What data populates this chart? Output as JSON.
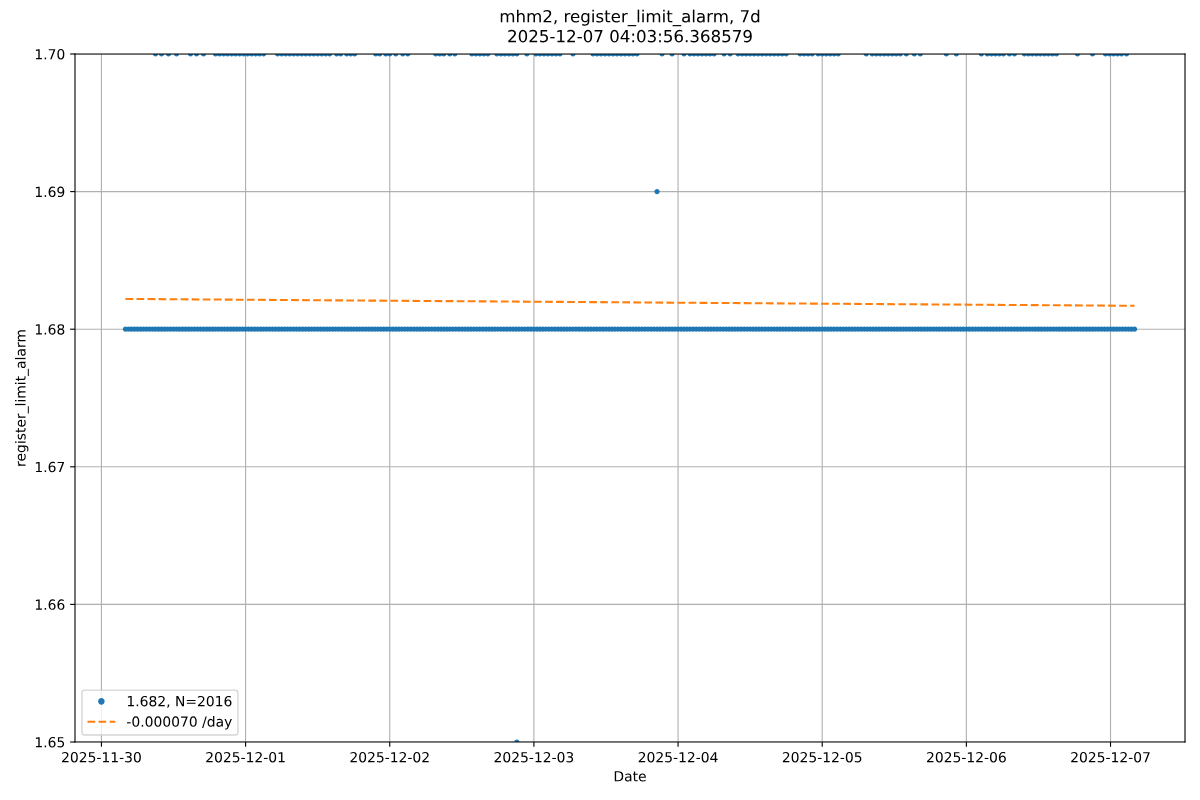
{
  "chart_data": {
    "type": "scatter",
    "title": "mhm2, register_limit_alarm, 7d",
    "subtitle": "2025-12-07 04:03:56.368579",
    "xlabel": "Date",
    "ylabel": "register_limit_alarm",
    "xlim": [
      "2025-11-29T19:36",
      "2025-12-07T12:24"
    ],
    "ylim": [
      1.65,
      1.7
    ],
    "xticks": [
      {
        "value": "2025-11-30",
        "label": "2025-11-30"
      },
      {
        "value": "2025-12-01",
        "label": "2025-12-01"
      },
      {
        "value": "2025-12-02",
        "label": "2025-12-02"
      },
      {
        "value": "2025-12-03",
        "label": "2025-12-03"
      },
      {
        "value": "2025-12-04",
        "label": "2025-12-04"
      },
      {
        "value": "2025-12-05",
        "label": "2025-12-05"
      },
      {
        "value": "2025-12-06",
        "label": "2025-12-06"
      },
      {
        "value": "2025-12-07",
        "label": "2025-12-07"
      }
    ],
    "yticks": [
      1.65,
      1.66,
      1.67,
      1.68,
      1.69,
      {
        "value": 1.7,
        "label": "1.70"
      }
    ],
    "grid": true,
    "legend": "bottom left",
    "series": [
      {
        "name": "1.682, N=2016",
        "color": "#1f77b4",
        "marker": "circle",
        "x": [
          "2025-11-30T04:00",
          "2025-11-30T04:30",
          "2025-11-30T05:00",
          "2025-11-30T05:30",
          "2025-11-30T06:00",
          "2025-11-30T06:30",
          "2025-11-30T07:00",
          "2025-11-30T07:30",
          "2025-11-30T08:00",
          "2025-11-30T08:30",
          "2025-11-30T09:00",
          "2025-11-30T09:30",
          "2025-11-30T10:00",
          "2025-11-30T10:30",
          "2025-11-30T11:00",
          "2025-11-30T11:30",
          "2025-11-30T12:00",
          "2025-11-30T12:30",
          "2025-11-30T13:00",
          "2025-11-30T13:30",
          "2025-11-30T14:00",
          "2025-11-30T14:30",
          "2025-11-30T15:00",
          "2025-11-30T15:30",
          "2025-11-30T16:00",
          "2025-11-30T16:30",
          "2025-11-30T17:00",
          "2025-11-30T17:30",
          "2025-11-30T18:00",
          "2025-11-30T18:30",
          "2025-11-30T19:00",
          "2025-11-30T19:30",
          "2025-11-30T20:00",
          "2025-11-30T20:30",
          "2025-11-30T21:00",
          "2025-11-30T21:30",
          "2025-11-30T22:00",
          "2025-11-30T22:30",
          "2025-11-30T23:00",
          "2025-11-30T23:30",
          "2025-12-01T00:00",
          "2025-12-01T00:30",
          "2025-12-01T01:00",
          "2025-12-01T01:30",
          "2025-12-01T02:00",
          "2025-12-01T02:30",
          "2025-12-01T03:00",
          "2025-12-01T03:30",
          "2025-12-01T04:00",
          "2025-12-01T04:30",
          "2025-12-01T05:00",
          "2025-12-01T05:30",
          "2025-12-01T06:00",
          "2025-12-01T06:30",
          "2025-12-01T07:00",
          "2025-12-01T07:30",
          "2025-12-01T08:00",
          "2025-12-01T08:30",
          "2025-12-01T09:00",
          "2025-12-01T09:30",
          "2025-12-01T10:00",
          "2025-12-01T10:30",
          "2025-12-01T11:00",
          "2025-12-01T11:30",
          "2025-12-01T12:00",
          "2025-12-01T12:30",
          "2025-12-01T13:00",
          "2025-12-01T13:30",
          "2025-12-01T14:00",
          "2025-12-01T14:30",
          "2025-12-01T15:00",
          "2025-12-01T15:30",
          "2025-12-01T16:00",
          "2025-12-01T16:30",
          "2025-12-01T17:00",
          "2025-12-01T17:30",
          "2025-12-01T18:00",
          "2025-12-01T18:30",
          "2025-12-01T19:00",
          "2025-12-01T19:30",
          "2025-12-01T20:00",
          "2025-12-01T20:30",
          "2025-12-01T21:00",
          "2025-12-01T21:30",
          "2025-12-01T22:00",
          "2025-12-01T22:30",
          "2025-12-01T23:00",
          "2025-12-01T23:30",
          "2025-12-02T00:00",
          "2025-12-02T00:30",
          "2025-12-02T01:00",
          "2025-12-02T01:30",
          "2025-12-02T02:00",
          "2025-12-02T02:30",
          "2025-12-02T03:00",
          "2025-12-02T03:30",
          "2025-12-02T04:00",
          "2025-12-02T04:30",
          "2025-12-02T05:00",
          "2025-12-02T05:30",
          "2025-12-02T06:00",
          "2025-12-02T06:30",
          "2025-12-02T07:00",
          "2025-12-02T07:30",
          "2025-12-02T08:00",
          "2025-12-02T08:30",
          "2025-12-02T09:00",
          "2025-12-02T09:30",
          "2025-12-02T10:00",
          "2025-12-02T10:30",
          "2025-12-02T11:00",
          "2025-12-02T11:30",
          "2025-12-02T12:00",
          "2025-12-02T12:30",
          "2025-12-02T13:00",
          "2025-12-02T13:30",
          "2025-12-02T14:00",
          "2025-12-02T14:30",
          "2025-12-02T15:00",
          "2025-12-02T15:30",
          "2025-12-02T16:00",
          "2025-12-02T16:30",
          "2025-12-02T17:00",
          "2025-12-02T17:30",
          "2025-12-02T18:00",
          "2025-12-02T18:30",
          "2025-12-02T19:00",
          "2025-12-02T19:30",
          "2025-12-02T20:00",
          "2025-12-02T20:30",
          "2025-12-02T21:00",
          "2025-12-02T21:30",
          "2025-12-02T22:00",
          "2025-12-02T22:30",
          "2025-12-02T23:00",
          "2025-12-02T23:30",
          "2025-12-03T00:00",
          "2025-12-03T00:30",
          "2025-12-03T01:00",
          "2025-12-03T01:30",
          "2025-12-03T02:00",
          "2025-12-03T02:30",
          "2025-12-03T03:00",
          "2025-12-03T03:30",
          "2025-12-03T04:00",
          "2025-12-03T04:30",
          "2025-12-03T05:00",
          "2025-12-03T05:30",
          "2025-12-03T06:00",
          "2025-12-03T06:30",
          "2025-12-03T07:00",
          "2025-12-03T07:30",
          "2025-12-03T08:00",
          "2025-12-03T08:30",
          "2025-12-03T09:00",
          "2025-12-03T09:30",
          "2025-12-03T10:00",
          "2025-12-03T10:30",
          "2025-12-03T11:00",
          "2025-12-03T11:30",
          "2025-12-03T12:00",
          "2025-12-03T12:30",
          "2025-12-03T13:00",
          "2025-12-03T13:30",
          "2025-12-03T14:00",
          "2025-12-03T14:30",
          "2025-12-03T15:00",
          "2025-12-03T15:30",
          "2025-12-03T16:00",
          "2025-12-03T16:30",
          "2025-12-03T17:00",
          "2025-12-03T17:30",
          "2025-12-03T18:00",
          "2025-12-03T18:30",
          "2025-12-03T19:00",
          "2025-12-03T19:30",
          "2025-12-03T20:00",
          "2025-12-03T20:30",
          "2025-12-03T21:00",
          "2025-12-03T21:30",
          "2025-12-03T22:00",
          "2025-12-03T22:30",
          "2025-12-03T23:00",
          "2025-12-03T23:30",
          "2025-12-04T00:00",
          "2025-12-04T00:30",
          "2025-12-04T01:00",
          "2025-12-04T01:30",
          "2025-12-04T02:00",
          "2025-12-04T02:30",
          "2025-12-04T03:00",
          "2025-12-04T03:30",
          "2025-12-04T04:00",
          "2025-12-04T04:30",
          "2025-12-04T05:00",
          "2025-12-04T05:30",
          "2025-12-04T06:00",
          "2025-12-04T06:30",
          "2025-12-04T07:00",
          "2025-12-04T07:30",
          "2025-12-04T08:00",
          "2025-12-04T08:30",
          "2025-12-04T09:00",
          "2025-12-04T09:30",
          "2025-12-04T10:00",
          "2025-12-04T10:30",
          "2025-12-04T11:00",
          "2025-12-04T11:30",
          "2025-12-04T12:00",
          "2025-12-04T12:30",
          "2025-12-04T13:00",
          "2025-12-04T13:30",
          "2025-12-04T14:00",
          "2025-12-04T14:30",
          "2025-12-04T15:00",
          "2025-12-04T15:30",
          "2025-12-04T16:00",
          "2025-12-04T16:30",
          "2025-12-04T17:00",
          "2025-12-04T17:30",
          "2025-12-04T18:00",
          "2025-12-04T18:30",
          "2025-12-04T19:00",
          "2025-12-04T19:30",
          "2025-12-04T20:00",
          "2025-12-04T20:30",
          "2025-12-04T21:00",
          "2025-12-04T21:30",
          "2025-12-04T22:00",
          "2025-12-04T22:30",
          "2025-12-04T23:00",
          "2025-12-04T23:30",
          "2025-12-05T00:00",
          "2025-12-05T00:30",
          "2025-12-05T01:00",
          "2025-12-05T01:30",
          "2025-12-05T02:00",
          "2025-12-05T02:30",
          "2025-12-05T03:00",
          "2025-12-05T03:30",
          "2025-12-05T04:00",
          "2025-12-05T04:30",
          "2025-12-05T05:00",
          "2025-12-05T05:30",
          "2025-12-05T06:00",
          "2025-12-05T06:30",
          "2025-12-05T07:00",
          "2025-12-05T07:30",
          "2025-12-05T08:00",
          "2025-12-05T08:30",
          "2025-12-05T09:00",
          "2025-12-05T09:30",
          "2025-12-05T10:00",
          "2025-12-05T10:30",
          "2025-12-05T11:00",
          "2025-12-05T11:30",
          "2025-12-05T12:00",
          "2025-12-05T12:30",
          "2025-12-05T13:00",
          "2025-12-05T13:30",
          "2025-12-05T14:00",
          "2025-12-05T14:30",
          "2025-12-05T15:00",
          "2025-12-05T15:30",
          "2025-12-05T16:00",
          "2025-12-05T16:30",
          "2025-12-05T17:00",
          "2025-12-05T17:30",
          "2025-12-05T18:00",
          "2025-12-05T18:30",
          "2025-12-05T19:00",
          "2025-12-05T19:30",
          "2025-12-05T20:00",
          "2025-12-05T20:30",
          "2025-12-05T21:00",
          "2025-12-05T21:30",
          "2025-12-05T22:00",
          "2025-12-05T22:30",
          "2025-12-05T23:00",
          "2025-12-05T23:30",
          "2025-12-06T00:00",
          "2025-12-06T00:30",
          "2025-12-06T01:00",
          "2025-12-06T01:30",
          "2025-12-06T02:00",
          "2025-12-06T02:30",
          "2025-12-06T03:00",
          "2025-12-06T03:30",
          "2025-12-06T04:00",
          "2025-12-06T04:30",
          "2025-12-06T05:00",
          "2025-12-06T05:30",
          "2025-12-06T06:00",
          "2025-12-06T06:30",
          "2025-12-06T07:00",
          "2025-12-06T07:30",
          "2025-12-06T08:00",
          "2025-12-06T08:30",
          "2025-12-06T09:00",
          "2025-12-06T09:30",
          "2025-12-06T10:00",
          "2025-12-06T10:30",
          "2025-12-06T11:00",
          "2025-12-06T11:30",
          "2025-12-06T12:00",
          "2025-12-06T12:30",
          "2025-12-06T13:00",
          "2025-12-06T13:30",
          "2025-12-06T14:00",
          "2025-12-06T14:30",
          "2025-12-06T15:00",
          "2025-12-06T15:30",
          "2025-12-06T16:00",
          "2025-12-06T16:30",
          "2025-12-06T17:00",
          "2025-12-06T17:30",
          "2025-12-06T18:00",
          "2025-12-06T18:30",
          "2025-12-06T19:00",
          "2025-12-06T19:30",
          "2025-12-06T20:00",
          "2025-12-06T20:30",
          "2025-12-06T21:00",
          "2025-12-06T21:30",
          "2025-12-06T22:00",
          "2025-12-06T22:30",
          "2025-12-06T23:00",
          "2025-12-06T23:30",
          "2025-12-07T00:00",
          "2025-12-07T00:30",
          "2025-12-07T01:00",
          "2025-12-07T01:30",
          "2025-12-07T02:00",
          "2025-12-07T02:30",
          "2025-12-07T03:00",
          "2025-12-07T03:30",
          "2025-12-07T04:00",
          "2025-11-30T09:00",
          "2025-11-30T10:00",
          "2025-11-30T11:10",
          "2025-11-30T12:30",
          "2025-11-30T14:50",
          "2025-11-30T15:50",
          "2025-11-30T17:00",
          "2025-11-30T19:00",
          "2025-11-30T19:40",
          "2025-11-30T20:20",
          "2025-11-30T21:00",
          "2025-11-30T21:40",
          "2025-11-30T22:20",
          "2025-11-30T23:00",
          "2025-11-30T23:40",
          "2025-12-01T00:20",
          "2025-12-01T01:00",
          "2025-12-01T01:40",
          "2025-12-01T02:20",
          "2025-12-01T03:00",
          "2025-12-01T05:20",
          "2025-12-01T06:00",
          "2025-12-01T06:40",
          "2025-12-01T07:20",
          "2025-12-01T08:00",
          "2025-12-01T08:40",
          "2025-12-01T09:20",
          "2025-12-01T10:00",
          "2025-12-01T10:40",
          "2025-12-01T11:20",
          "2025-12-01T12:00",
          "2025-12-01T12:40",
          "2025-12-01T13:20",
          "2025-12-01T14:00",
          "2025-12-01T15:10",
          "2025-12-01T15:50",
          "2025-12-01T16:50",
          "2025-12-01T17:30",
          "2025-12-01T18:10",
          "2025-12-01T21:40",
          "2025-12-01T22:20",
          "2025-12-01T23:20",
          "2025-12-02T00:00",
          "2025-12-02T01:00",
          "2025-12-02T02:10",
          "2025-12-02T03:00",
          "2025-12-02T07:40",
          "2025-12-02T08:20",
          "2025-12-02T09:00",
          "2025-12-02T10:00",
          "2025-12-02T10:50",
          "2025-12-02T13:40",
          "2025-12-02T14:20",
          "2025-12-02T15:00",
          "2025-12-02T15:40",
          "2025-12-02T16:20",
          "2025-12-02T17:50",
          "2025-12-02T18:30",
          "2025-12-02T19:10",
          "2025-12-02T19:50",
          "2025-12-02T20:30",
          "2025-12-02T21:10",
          "2025-12-02T22:50",
          "2025-12-03T00:20",
          "2025-12-03T01:00",
          "2025-12-03T01:40",
          "2025-12-03T02:20",
          "2025-12-03T03:00",
          "2025-12-03T03:40",
          "2025-12-03T04:20",
          "2025-12-03T06:30",
          "2025-12-03T09:50",
          "2025-12-03T10:30",
          "2025-12-03T11:10",
          "2025-12-03T11:50",
          "2025-12-03T12:30",
          "2025-12-03T13:10",
          "2025-12-03T13:50",
          "2025-12-03T14:30",
          "2025-12-03T15:10",
          "2025-12-03T15:50",
          "2025-12-03T16:30",
          "2025-12-03T17:10",
          "2025-12-03T21:20",
          "2025-12-03T23:00",
          "2025-12-04T01:00",
          "2025-12-04T02:00",
          "2025-12-04T02:40",
          "2025-12-04T03:20",
          "2025-12-04T04:00",
          "2025-12-04T04:40",
          "2025-12-04T05:20",
          "2025-12-04T06:00",
          "2025-12-04T07:40",
          "2025-12-04T08:40",
          "2025-12-04T10:00",
          "2025-12-04T10:40",
          "2025-12-04T11:20",
          "2025-12-04T12:00",
          "2025-12-04T12:40",
          "2025-12-04T13:20",
          "2025-12-04T14:00",
          "2025-12-04T14:40",
          "2025-12-04T15:20",
          "2025-12-04T16:00",
          "2025-12-04T16:40",
          "2025-12-04T17:20",
          "2025-12-04T18:00",
          "2025-12-04T20:20",
          "2025-12-04T21:00",
          "2025-12-04T21:40",
          "2025-12-04T22:20",
          "2025-12-04T23:20",
          "2025-12-05T00:00",
          "2025-12-05T00:40",
          "2025-12-05T01:20",
          "2025-12-05T02:00",
          "2025-12-05T02:40",
          "2025-12-05T07:20",
          "2025-12-05T08:20",
          "2025-12-05T09:00",
          "2025-12-05T09:40",
          "2025-12-05T10:20",
          "2025-12-05T11:00",
          "2025-12-05T11:40",
          "2025-12-05T12:20",
          "2025-12-05T13:00",
          "2025-12-05T14:00",
          "2025-12-05T15:20",
          "2025-12-05T16:20",
          "2025-12-05T20:40",
          "2025-12-05T22:20",
          "2025-12-06T02:30",
          "2025-12-06T03:30",
          "2025-12-06T04:10",
          "2025-12-06T04:50",
          "2025-12-06T05:30",
          "2025-12-06T06:10",
          "2025-12-06T07:10",
          "2025-12-06T08:00",
          "2025-12-06T09:40",
          "2025-12-06T10:20",
          "2025-12-06T11:00",
          "2025-12-06T11:40",
          "2025-12-06T12:20",
          "2025-12-06T13:00",
          "2025-12-06T13:40",
          "2025-12-06T14:20",
          "2025-12-06T15:00",
          "2025-12-06T18:30",
          "2025-12-06T21:00",
          "2025-12-06T23:10",
          "2025-12-06T23:50",
          "2025-12-07T00:30",
          "2025-12-07T01:10",
          "2025-12-07T01:50",
          "2025-12-07T02:40",
          "2025-12-03T20:30",
          "2025-12-02T21:10"
        ],
        "values": [
          1.68,
          1.68,
          1.68,
          1.68,
          1.68,
          1.68,
          1.68,
          1.68,
          1.68,
          1.68,
          1.68,
          1.68,
          1.68,
          1.68,
          1.68,
          1.68,
          1.68,
          1.68,
          1.68,
          1.68,
          1.68,
          1.68,
          1.68,
          1.68,
          1.68,
          1.68,
          1.68,
          1.68,
          1.68,
          1.68,
          1.68,
          1.68,
          1.68,
          1.68,
          1.68,
          1.68,
          1.68,
          1.68,
          1.68,
          1.68,
          1.68,
          1.68,
          1.68,
          1.68,
          1.68,
          1.68,
          1.68,
          1.68,
          1.68,
          1.68,
          1.68,
          1.68,
          1.68,
          1.68,
          1.68,
          1.68,
          1.68,
          1.68,
          1.68,
          1.68,
          1.68,
          1.68,
          1.68,
          1.68,
          1.68,
          1.68,
          1.68,
          1.68,
          1.68,
          1.68,
          1.68,
          1.68,
          1.68,
          1.68,
          1.68,
          1.68,
          1.68,
          1.68,
          1.68,
          1.68,
          1.68,
          1.68,
          1.68,
          1.68,
          1.68,
          1.68,
          1.68,
          1.68,
          1.68,
          1.68,
          1.68,
          1.68,
          1.68,
          1.68,
          1.68,
          1.68,
          1.68,
          1.68,
          1.68,
          1.68,
          1.68,
          1.68,
          1.68,
          1.68,
          1.68,
          1.68,
          1.68,
          1.68,
          1.68,
          1.68,
          1.68,
          1.68,
          1.68,
          1.68,
          1.68,
          1.68,
          1.68,
          1.68,
          1.68,
          1.68,
          1.68,
          1.68,
          1.68,
          1.68,
          1.68,
          1.68,
          1.68,
          1.68,
          1.68,
          1.68,
          1.68,
          1.68,
          1.68,
          1.68,
          1.68,
          1.68,
          1.68,
          1.68,
          1.68,
          1.68,
          1.68,
          1.68,
          1.68,
          1.68,
          1.68,
          1.68,
          1.68,
          1.68,
          1.68,
          1.68,
          1.68,
          1.68,
          1.68,
          1.68,
          1.68,
          1.68,
          1.68,
          1.68,
          1.68,
          1.68,
          1.68,
          1.68,
          1.68,
          1.68,
          1.68,
          1.68,
          1.68,
          1.68,
          1.68,
          1.68,
          1.68,
          1.68,
          1.68,
          1.68,
          1.68,
          1.68,
          1.68,
          1.68,
          1.68,
          1.68,
          1.68,
          1.68,
          1.68,
          1.68,
          1.68,
          1.68,
          1.68,
          1.68,
          1.68,
          1.68,
          1.68,
          1.68,
          1.68,
          1.68,
          1.68,
          1.68,
          1.68,
          1.68,
          1.68,
          1.68,
          1.68,
          1.68,
          1.68,
          1.68,
          1.68,
          1.68,
          1.68,
          1.68,
          1.68,
          1.68,
          1.68,
          1.68,
          1.68,
          1.68,
          1.68,
          1.68,
          1.68,
          1.68,
          1.68,
          1.68,
          1.68,
          1.68,
          1.68,
          1.68,
          1.68,
          1.68,
          1.68,
          1.68,
          1.68,
          1.68,
          1.68,
          1.68,
          1.68,
          1.68,
          1.68,
          1.68,
          1.68,
          1.68,
          1.68,
          1.68,
          1.68,
          1.68,
          1.68,
          1.68,
          1.68,
          1.68,
          1.68,
          1.68,
          1.68,
          1.68,
          1.68,
          1.68,
          1.68,
          1.68,
          1.68,
          1.68,
          1.68,
          1.68,
          1.68,
          1.68,
          1.68,
          1.68,
          1.68,
          1.68,
          1.68,
          1.68,
          1.68,
          1.68,
          1.68,
          1.68,
          1.68,
          1.68,
          1.68,
          1.68,
          1.68,
          1.68,
          1.68,
          1.68,
          1.68,
          1.68,
          1.68,
          1.68,
          1.68,
          1.68,
          1.68,
          1.68,
          1.68,
          1.68,
          1.68,
          1.68,
          1.68,
          1.68,
          1.68,
          1.68,
          1.68,
          1.68,
          1.68,
          1.68,
          1.68,
          1.68,
          1.68,
          1.68,
          1.68,
          1.68,
          1.68,
          1.68,
          1.68,
          1.68,
          1.68,
          1.68,
          1.68,
          1.68,
          1.68,
          1.68,
          1.68,
          1.68,
          1.68,
          1.68,
          1.68,
          1.68,
          1.68,
          1.68,
          1.68,
          1.68,
          1.68,
          1.68,
          1.68,
          1.68,
          1.68,
          1.68,
          1.68,
          1.68,
          1.68,
          1.68,
          1.68,
          1.68,
          1.68,
          1.7,
          1.7,
          1.7,
          1.7,
          1.7,
          1.7,
          1.7,
          1.7,
          1.7,
          1.7,
          1.7,
          1.7,
          1.7,
          1.7,
          1.7,
          1.7,
          1.7,
          1.7,
          1.7,
          1.7,
          1.7,
          1.7,
          1.7,
          1.7,
          1.7,
          1.7,
          1.7,
          1.7,
          1.7,
          1.7,
          1.7,
          1.7,
          1.7,
          1.7,
          1.7,
          1.7,
          1.7,
          1.7,
          1.7,
          1.7,
          1.7,
          1.7,
          1.7,
          1.7,
          1.7,
          1.7,
          1.7,
          1.7,
          1.7,
          1.7,
          1.7,
          1.7,
          1.7,
          1.7,
          1.7,
          1.7,
          1.7,
          1.7,
          1.7,
          1.7,
          1.7,
          1.7,
          1.7,
          1.7,
          1.7,
          1.7,
          1.7,
          1.7,
          1.7,
          1.7,
          1.7,
          1.7,
          1.7,
          1.7,
          1.7,
          1.7,
          1.7,
          1.7,
          1.7,
          1.7,
          1.7,
          1.7,
          1.7,
          1.7,
          1.7,
          1.7,
          1.7,
          1.7,
          1.7,
          1.7,
          1.7,
          1.7,
          1.7,
          1.7,
          1.7,
          1.7,
          1.7,
          1.7,
          1.7,
          1.7,
          1.7,
          1.7,
          1.7,
          1.7,
          1.7,
          1.7,
          1.7,
          1.7,
          1.7,
          1.7,
          1.7,
          1.7,
          1.7,
          1.7,
          1.7,
          1.7,
          1.7,
          1.7,
          1.7,
          1.7,
          1.7,
          1.7,
          1.7,
          1.7,
          1.7,
          1.7,
          1.7,
          1.7,
          1.7,
          1.7,
          1.7,
          1.7,
          1.7,
          1.7,
          1.7,
          1.7,
          1.7,
          1.7,
          1.7,
          1.7,
          1.7,
          1.7,
          1.7,
          1.7,
          1.7,
          1.7,
          1.7,
          1.7,
          1.7,
          1.7,
          1.7,
          1.7,
          1.7,
          1.7,
          1.7,
          1.7,
          1.7,
          1.69,
          1.65
        ]
      },
      {
        "name": "-0.000070 /day",
        "type": "line",
        "color": "#ff7f0e",
        "line_style": "dashed",
        "x": [
          "2025-11-30T04:00",
          "2025-12-07T04:00"
        ],
        "values": [
          1.6822,
          1.6817
        ]
      }
    ]
  }
}
